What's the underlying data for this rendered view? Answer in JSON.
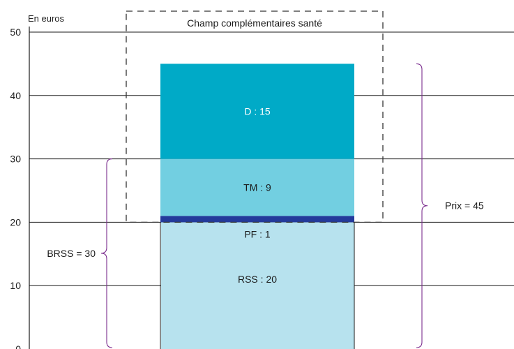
{
  "chart_data": {
    "type": "bar",
    "stacked": true,
    "unit_label": "En euros",
    "ylim": [
      0,
      50
    ],
    "yticks": [
      0,
      10,
      20,
      30,
      40,
      50
    ],
    "grid": true,
    "segments": [
      {
        "name": "RSS",
        "label": "RSS : 20",
        "start": 0,
        "value": 20,
        "color": "#b7e2ee"
      },
      {
        "name": "PF",
        "label": "PF : 1",
        "start": 20,
        "value": 1,
        "color": "#233a9b",
        "label_below": true
      },
      {
        "name": "TM",
        "label": "TM : 9",
        "start": 21,
        "value": 9,
        "color": "#72cfe1"
      },
      {
        "name": "D",
        "label": "D : 15",
        "start": 30,
        "value": 15,
        "color": "#00aac7",
        "light_text": true
      }
    ],
    "annotations": {
      "dashed_box_label": "Champ complémentaires santé",
      "dashed_box_range": [
        20,
        50
      ],
      "left_brace_label": "BRSS = 30",
      "left_brace_range": [
        0,
        30
      ],
      "right_brace_label": "Prix = 45",
      "right_brace_range": [
        0,
        45
      ]
    }
  }
}
